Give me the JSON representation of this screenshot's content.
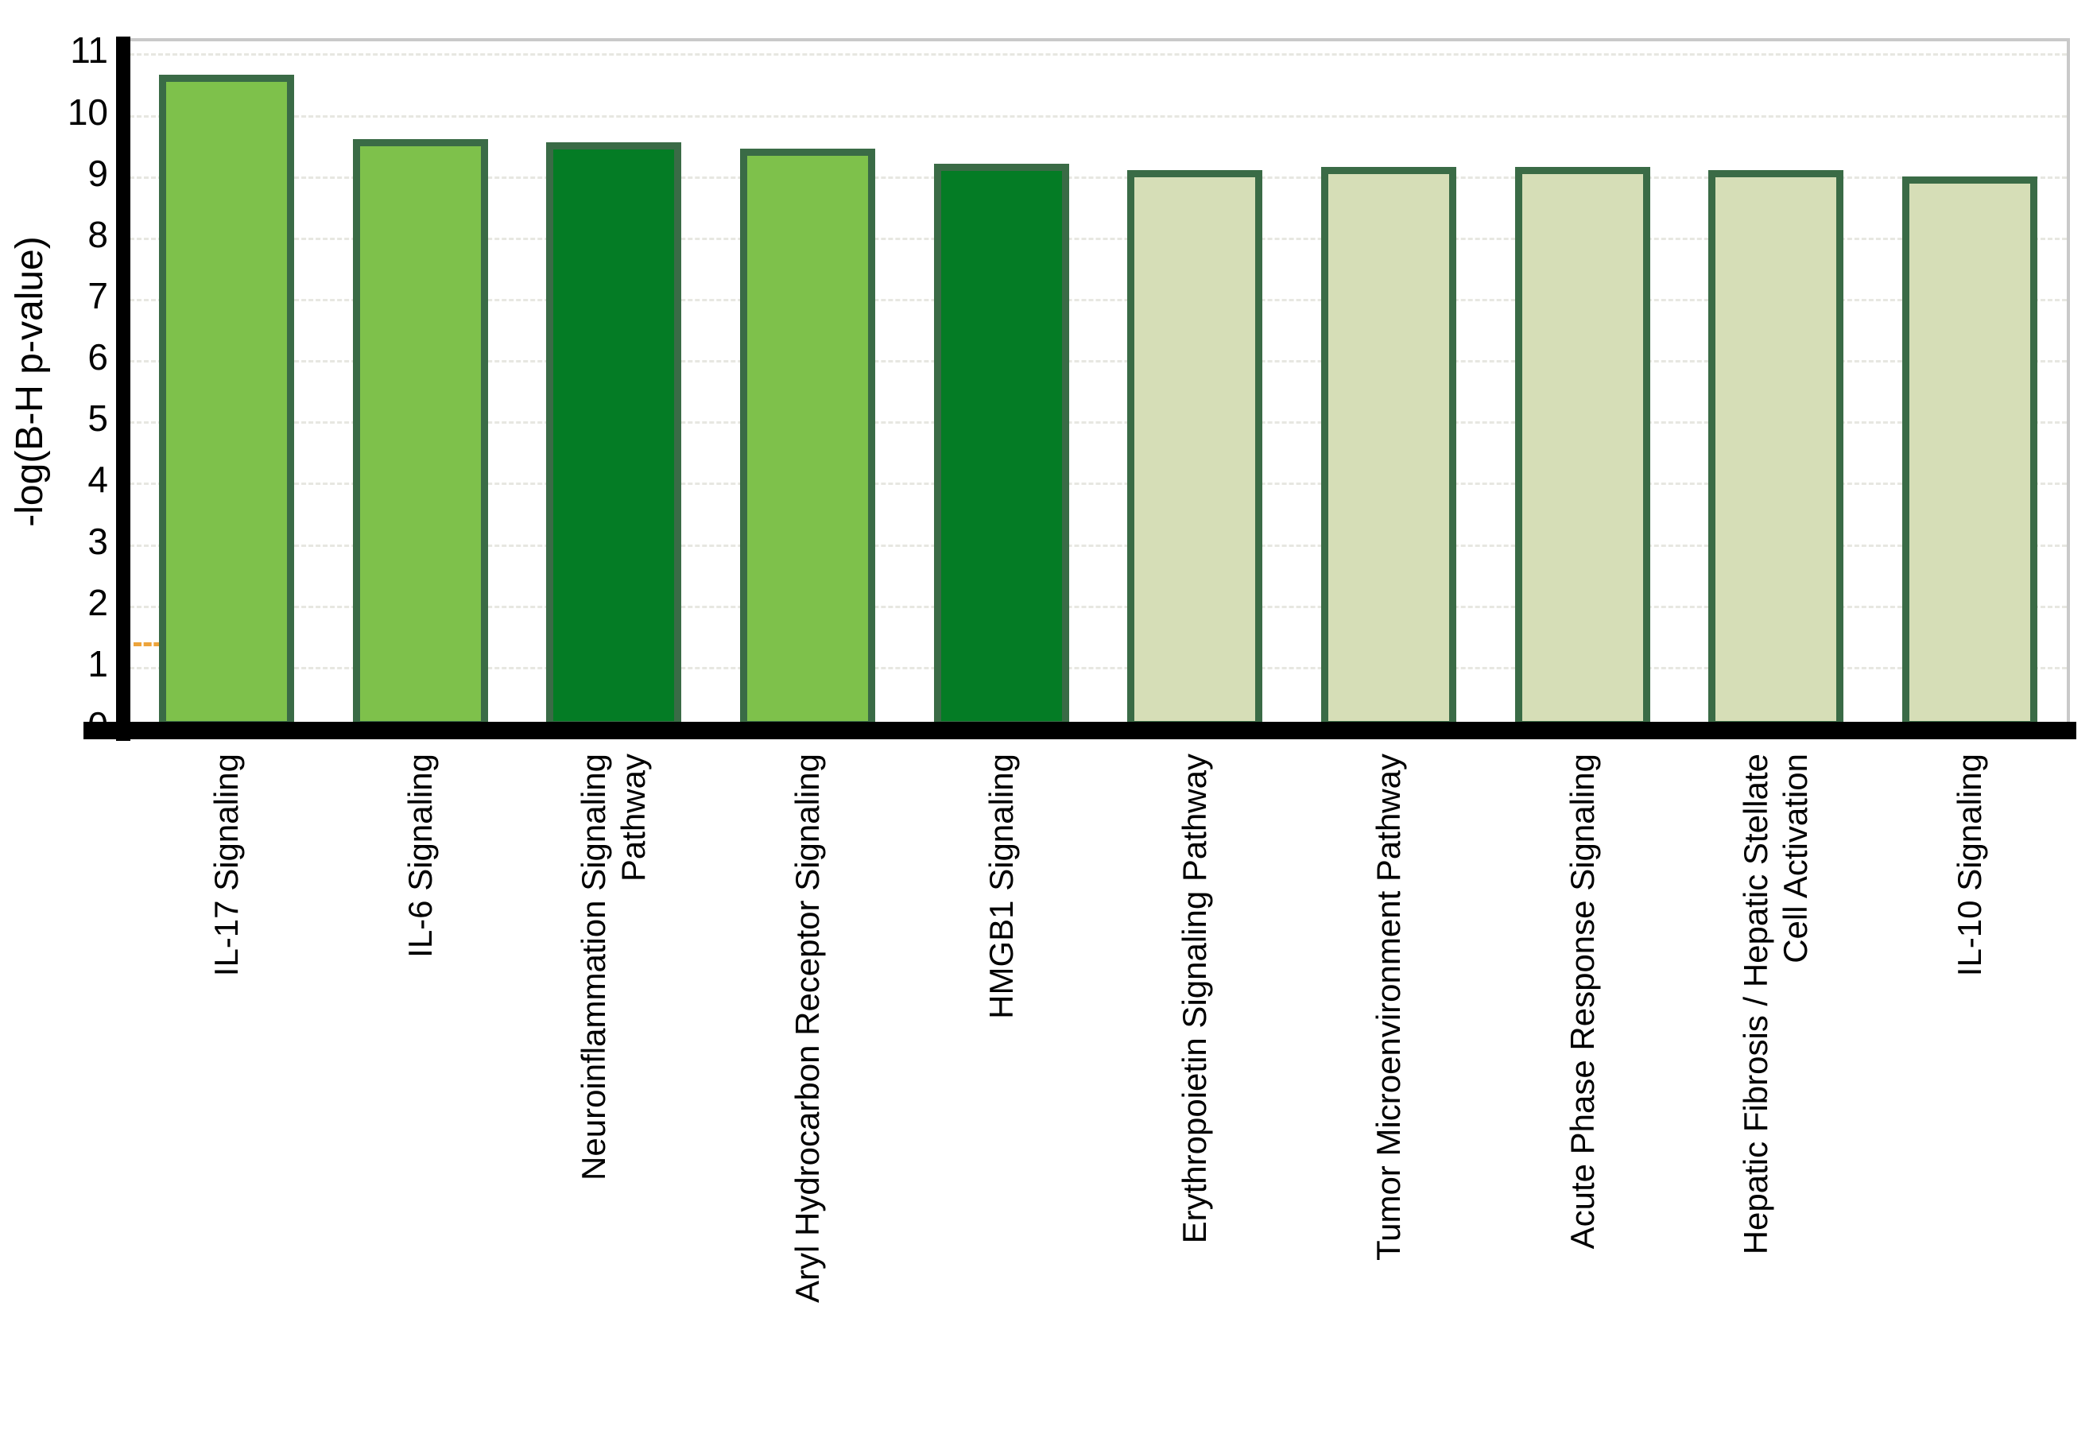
{
  "chart_data": {
    "type": "bar",
    "title": "",
    "xlabel": "",
    "ylabel": "-log(B-H p-value)",
    "ylim": [
      0,
      11
    ],
    "yticks": [
      0,
      1,
      2,
      3,
      4,
      5,
      6,
      7,
      8,
      9,
      10,
      11
    ],
    "grid": "horizontal-dashed",
    "legend": "none",
    "categories": [
      "IL-17 Signaling",
      "IL-6 Signaling",
      "Neuroinflammation Signaling Pathway",
      "Aryl Hydrocarbon Receptor Signaling",
      "HMGB1 Signaling",
      "Erythropoietin Signaling Pathway",
      "Tumor Microenvironment Pathway",
      "Acute Phase Response Signaling",
      "Hepatic Fibrosis / Hepatic Stellate Cell Activation",
      "IL-10 Signaling"
    ],
    "category_lines": [
      [
        "IL-17 Signaling"
      ],
      [
        "IL-6 Signaling"
      ],
      [
        "Neuroinflammation Signaling",
        "Pathway"
      ],
      [
        "Aryl Hydrocarbon Receptor Signaling"
      ],
      [
        "HMGB1 Signaling"
      ],
      [
        "Erythropoietin Signaling Pathway"
      ],
      [
        "Tumor Microenvironment Pathway"
      ],
      [
        "Acute Phase Response Signaling"
      ],
      [
        "Hepatic Fibrosis / Hepatic Stellate",
        "Cell Activation"
      ],
      [
        "IL-10 Signaling"
      ]
    ],
    "values": [
      10.65,
      9.6,
      9.55,
      9.45,
      9.2,
      9.1,
      9.15,
      9.15,
      9.1,
      9.0
    ],
    "bar_fill_colors": [
      "#7ec14b",
      "#7ec14b",
      "#047c25",
      "#7ec14b",
      "#047c25",
      "#d6deb7",
      "#d6deb7",
      "#d6deb7",
      "#d6deb7",
      "#d6deb7"
    ],
    "bar_border_color": "#3a6b46",
    "threshold": {
      "value": 1.4,
      "color": "#eda43b"
    },
    "colors": {
      "medium_green": "#7ec14b",
      "dark_green": "#047c25",
      "pale_green": "#d6deb7",
      "axis": "#000000",
      "gridline": "#e7e7e1",
      "plot_border": "#c9c9c9"
    }
  }
}
